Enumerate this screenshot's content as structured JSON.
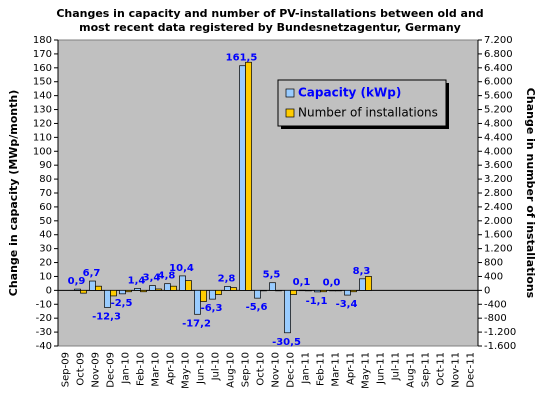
{
  "chart_data": {
    "type": "bar",
    "title": [
      "Changes in capacity and number of PV-installations between old and",
      "most recent data registered by Bundesnetzagentur, Germany"
    ],
    "ylabel": "Change in capacity (MWp/month)",
    "y2label": "Change in number of installations",
    "categories": [
      "Sep-09",
      "Oct-09",
      "Nov-09",
      "Dec-09",
      "Jan-10",
      "Feb-10",
      "Mar-10",
      "Apr-10",
      "May-10",
      "Jun-10",
      "Jul-10",
      "Aug-10",
      "Sep-10",
      "Oct-10",
      "Nov-10",
      "Dec-10",
      "Jan-11",
      "Feb-11",
      "Mar-11",
      "Apr-11",
      "May-11",
      "Jun-11",
      "Jul-11",
      "Aug-11",
      "Sep-11",
      "Oct-11",
      "Nov-11",
      "Dec-11"
    ],
    "series": [
      {
        "name": "Capacity (kWp)",
        "color": "#99ccff",
        "values": [
          null,
          0.9,
          6.7,
          -12.3,
          -2.5,
          1.4,
          3.4,
          4.8,
          10.4,
          -17.2,
          -6.3,
          2.8,
          161.5,
          -5.6,
          5.5,
          -30.5,
          0.1,
          -1.1,
          0.0,
          -3.4,
          8.3,
          null,
          null,
          null,
          null,
          null,
          null,
          null
        ],
        "value_labels": [
          null,
          "0,9",
          "6,7",
          "-12,3",
          "-2,5",
          "1,4",
          "3,4",
          "4,8",
          "10,4",
          "-17,2",
          "-6,3",
          "2,8",
          "161,5",
          "-5,6",
          "5,5",
          "-30,5",
          "0,1",
          "-1,1",
          "0,0",
          "-3,4",
          "8,3",
          null,
          null,
          null,
          null,
          null,
          null,
          null
        ]
      },
      {
        "name": "Number of installations",
        "color": "#ffcc00",
        "axis": "y2",
        "values": [
          null,
          -80,
          120,
          -160,
          -40,
          -40,
          40,
          120,
          280,
          -320,
          -120,
          80,
          6560,
          0,
          0,
          -120,
          0,
          -40,
          0,
          -40,
          400,
          null,
          null,
          null,
          null,
          null,
          null,
          null
        ]
      }
    ],
    "ylim": [
      -40,
      180
    ],
    "yticks": [
      -40,
      -30,
      -20,
      -10,
      0,
      10,
      20,
      30,
      40,
      50,
      60,
      70,
      80,
      90,
      100,
      110,
      120,
      130,
      140,
      150,
      160,
      170,
      180
    ],
    "y2lim": [
      -1600,
      7200
    ],
    "y2ticks": [
      {
        "value": -1600,
        "label": "-1.600"
      },
      {
        "value": -1200,
        "label": "-1.200"
      },
      -800,
      -400,
      0,
      400,
      800,
      {
        "value": 1200,
        "label": "1.200"
      },
      {
        "value": 1600,
        "label": "1.600"
      },
      {
        "value": 2000,
        "label": "2.000"
      },
      {
        "value": 2400,
        "label": "2.400"
      },
      {
        "value": 2800,
        "label": "2.800"
      },
      {
        "value": 3200,
        "label": "3.200"
      },
      {
        "value": 3600,
        "label": "3.600"
      },
      {
        "value": 4000,
        "label": "4.000"
      },
      {
        "value": 4400,
        "label": "4.400"
      },
      {
        "value": 4800,
        "label": "4.800"
      },
      {
        "value": 5200,
        "label": "5.200"
      },
      {
        "value": 5600,
        "label": "5.600"
      },
      {
        "value": 6000,
        "label": "6.000"
      },
      {
        "value": 6400,
        "label": "6.400"
      },
      {
        "value": 6800,
        "label": "6.800"
      },
      {
        "value": 7200,
        "label": "7.200"
      }
    ],
    "plot_background": "#c0c0c0"
  }
}
